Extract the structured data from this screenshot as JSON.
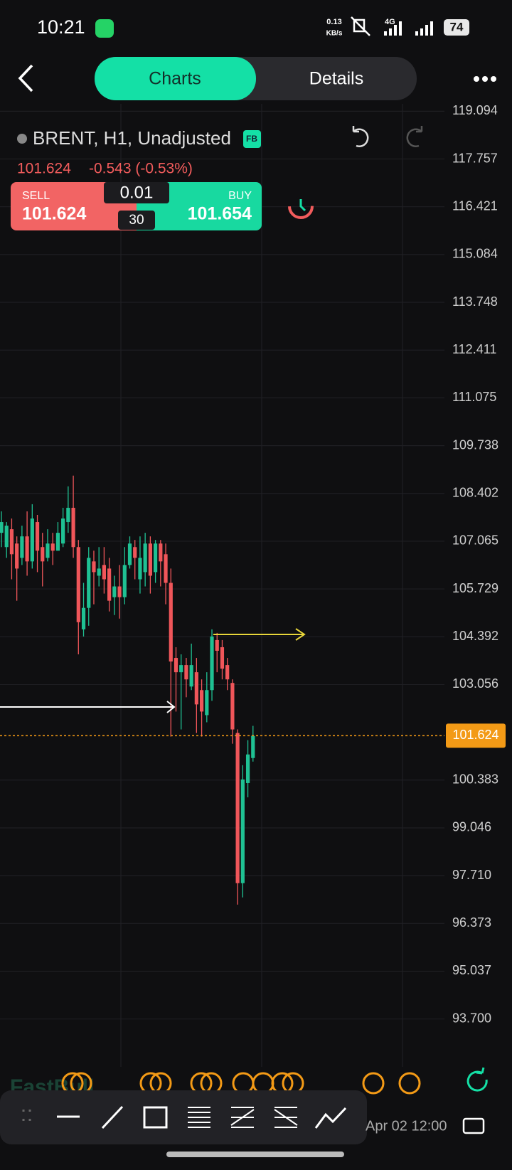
{
  "status_bar": {
    "time": "10:21",
    "net_speed": "0.13",
    "net_unit": "KB/s",
    "network": "4G",
    "battery": "74"
  },
  "tabs": [
    "Charts",
    "Details"
  ],
  "instrument": {
    "title": "BRENT, H1, Unadjusted",
    "badge": "FB",
    "price": "101.624",
    "change": "-0.543 (-0.53%)"
  },
  "trade": {
    "sell_label": "SELL",
    "sell_price": "101.624",
    "lot": "0.01",
    "spread": "30",
    "buy_label": "BUY",
    "buy_price": "101.654"
  },
  "watermark": "FastBull",
  "chart_data": {
    "type": "candlestick",
    "up_color": "#1fc193",
    "down_color": "#f0565a",
    "ylim": [
      92.44,
      119.3
    ],
    "yticks": [
      119.094,
      117.757,
      116.421,
      115.084,
      113.748,
      112.411,
      111.075,
      109.738,
      108.402,
      107.065,
      105.729,
      104.392,
      103.056,
      100.383,
      99.046,
      {
        "value": 97.71,
        "label": "97.710"
      },
      96.373,
      95.037,
      {
        "value": 93.7,
        "label": "93.700"
      }
    ],
    "last_price": 101.624,
    "x_label": "Apr 02 12:00",
    "candles": [
      {
        "o": 107.3,
        "h": 107.9,
        "l": 106.9,
        "c": 107.6
      },
      {
        "o": 106.9,
        "h": 107.6,
        "l": 106.6,
        "c": 107.5
      },
      {
        "o": 107.4,
        "h": 107.7,
        "l": 106.0,
        "c": 106.7
      },
      {
        "o": 107.0,
        "h": 107.2,
        "l": 105.4,
        "c": 106.3
      },
      {
        "o": 106.6,
        "h": 107.5,
        "l": 106.4,
        "c": 107.2
      },
      {
        "o": 107.2,
        "h": 107.9,
        "l": 106.1,
        "c": 106.5
      },
      {
        "o": 106.5,
        "h": 108.1,
        "l": 106.3,
        "c": 107.7
      },
      {
        "o": 107.6,
        "h": 107.8,
        "l": 106.2,
        "c": 106.8
      },
      {
        "o": 106.9,
        "h": 107.3,
        "l": 105.8,
        "c": 106.5
      },
      {
        "o": 106.6,
        "h": 107.4,
        "l": 106.5,
        "c": 107.0
      },
      {
        "o": 107.0,
        "h": 107.3,
        "l": 106.4,
        "c": 106.8
      },
      {
        "o": 106.8,
        "h": 107.6,
        "l": 106.8,
        "c": 107.3
      },
      {
        "o": 107.0,
        "h": 108.0,
        "l": 106.9,
        "c": 107.7
      },
      {
        "o": 107.6,
        "h": 108.6,
        "l": 107.3,
        "c": 108.0
      },
      {
        "o": 108.0,
        "h": 108.9,
        "l": 106.6,
        "c": 106.9
      },
      {
        "o": 106.9,
        "h": 107.1,
        "l": 103.9,
        "c": 104.8
      },
      {
        "o": 104.6,
        "h": 105.9,
        "l": 104.4,
        "c": 105.2
      },
      {
        "o": 105.2,
        "h": 106.9,
        "l": 104.7,
        "c": 106.6
      },
      {
        "o": 106.5,
        "h": 106.8,
        "l": 105.3,
        "c": 106.2
      },
      {
        "o": 106.1,
        "h": 106.9,
        "l": 105.8,
        "c": 106.3
      },
      {
        "o": 106.4,
        "h": 106.9,
        "l": 105.6,
        "c": 106.0
      },
      {
        "o": 106.3,
        "h": 106.6,
        "l": 105.1,
        "c": 105.4
      },
      {
        "o": 105.5,
        "h": 106.1,
        "l": 105.0,
        "c": 105.8
      },
      {
        "o": 105.8,
        "h": 106.4,
        "l": 104.9,
        "c": 105.5
      },
      {
        "o": 105.5,
        "h": 106.9,
        "l": 105.3,
        "c": 106.4
      },
      {
        "o": 106.4,
        "h": 107.2,
        "l": 106.3,
        "c": 107.0
      },
      {
        "o": 106.9,
        "h": 107.1,
        "l": 106.0,
        "c": 106.6
      },
      {
        "o": 106.0,
        "h": 107.2,
        "l": 105.6,
        "c": 106.6
      },
      {
        "o": 106.2,
        "h": 107.3,
        "l": 105.8,
        "c": 107.0
      },
      {
        "o": 107.0,
        "h": 107.2,
        "l": 105.6,
        "c": 106.1
      },
      {
        "o": 106.2,
        "h": 107.1,
        "l": 105.9,
        "c": 107.0
      },
      {
        "o": 107.0,
        "h": 107.1,
        "l": 105.8,
        "c": 106.5
      },
      {
        "o": 106.7,
        "h": 107.0,
        "l": 105.3,
        "c": 105.9
      },
      {
        "o": 105.9,
        "h": 106.3,
        "l": 101.6,
        "c": 103.7
      },
      {
        "o": 103.8,
        "h": 104.1,
        "l": 102.3,
        "c": 103.4
      },
      {
        "o": 103.4,
        "h": 103.9,
        "l": 101.8,
        "c": 103.6
      },
      {
        "o": 103.6,
        "h": 103.8,
        "l": 102.7,
        "c": 103.2
      },
      {
        "o": 103.0,
        "h": 104.2,
        "l": 102.9,
        "c": 103.6
      },
      {
        "o": 103.4,
        "h": 103.8,
        "l": 101.7,
        "c": 102.5
      },
      {
        "o": 102.9,
        "h": 103.2,
        "l": 101.6,
        "c": 102.3
      },
      {
        "o": 102.2,
        "h": 103.4,
        "l": 102.0,
        "c": 102.9
      },
      {
        "o": 102.9,
        "h": 104.6,
        "l": 102.6,
        "c": 104.4
      },
      {
        "o": 104.3,
        "h": 104.5,
        "l": 103.4,
        "c": 104.0
      },
      {
        "o": 104.1,
        "h": 104.3,
        "l": 103.2,
        "c": 103.5
      },
      {
        "o": 103.6,
        "h": 103.8,
        "l": 102.9,
        "c": 103.2
      },
      {
        "o": 103.1,
        "h": 103.2,
        "l": 101.4,
        "c": 101.8
      },
      {
        "o": 101.7,
        "h": 101.8,
        "l": 96.9,
        "c": 97.5
      },
      {
        "o": 97.5,
        "h": 100.8,
        "l": 97.1,
        "c": 100.4
      },
      {
        "o": 100.3,
        "h": 101.5,
        "l": 99.9,
        "c": 101.1
      },
      {
        "o": 101.0,
        "h": 101.9,
        "l": 100.9,
        "c": 101.62
      }
    ]
  }
}
